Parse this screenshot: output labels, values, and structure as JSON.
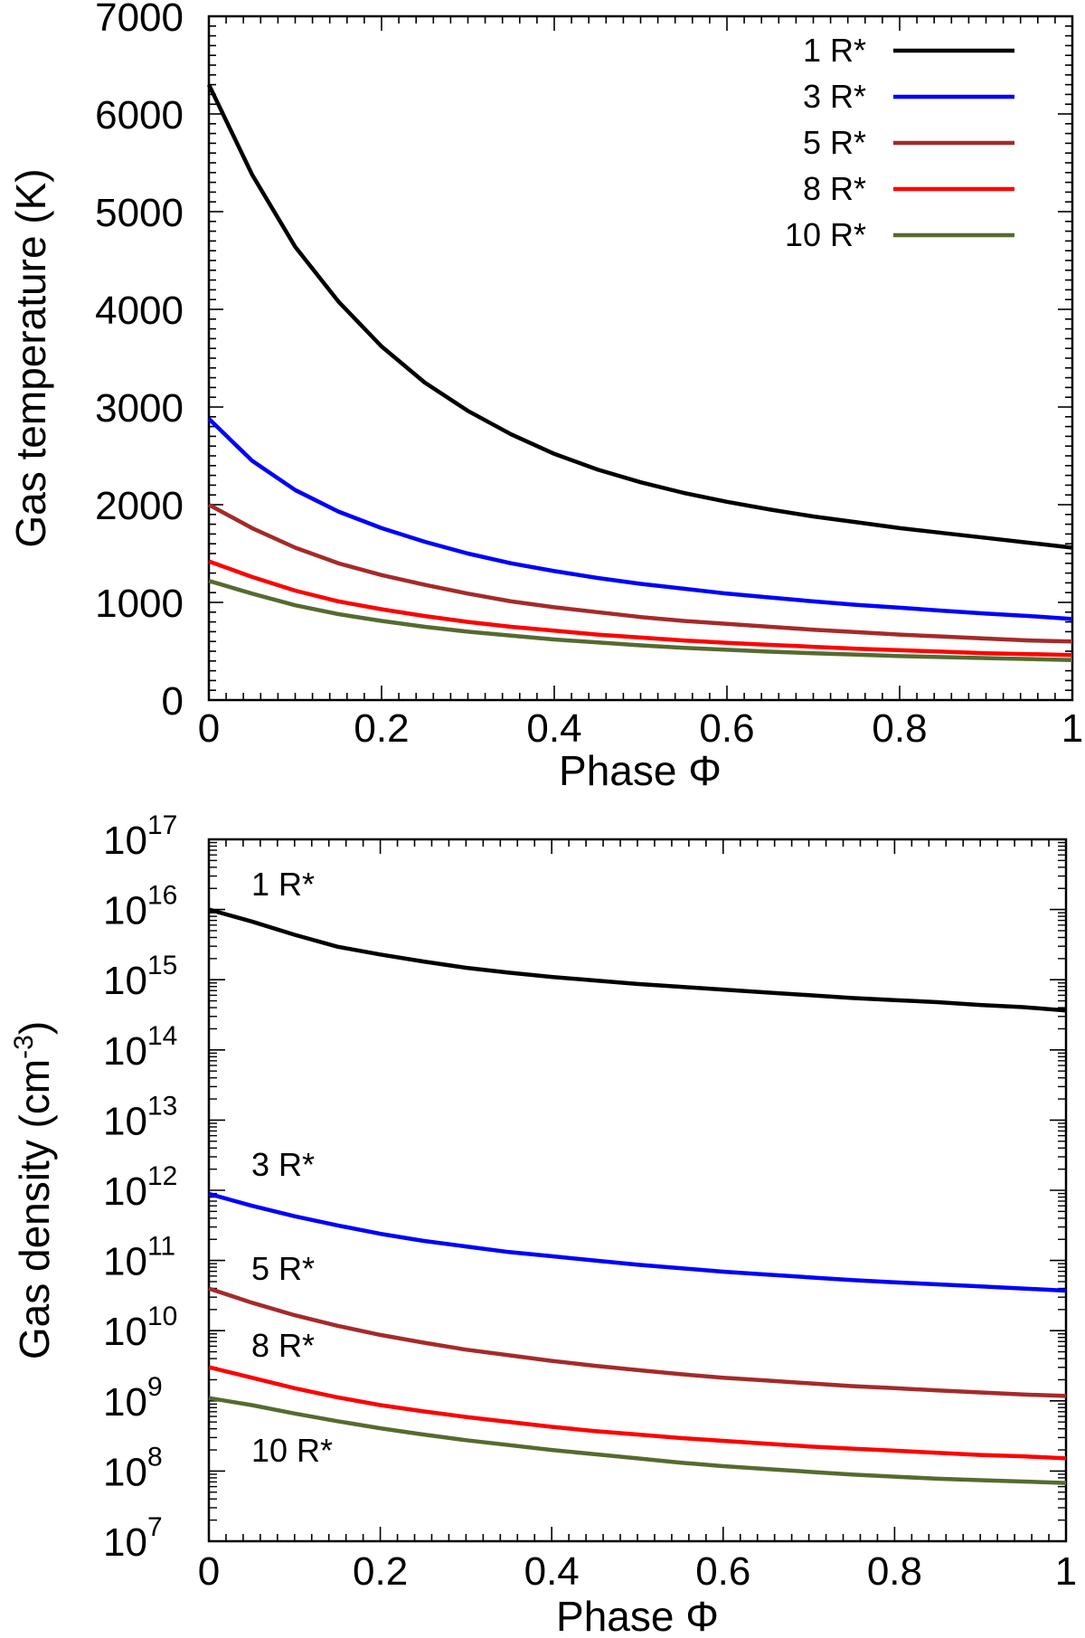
{
  "chart_data": [
    {
      "type": "line",
      "title": "",
      "xlabel": "Phase Φ",
      "ylabel": "Gas temperature (K)",
      "xlim": [
        0,
        1
      ],
      "ylim": [
        0,
        7000
      ],
      "xticks": [
        "0",
        "0.2",
        "0.4",
        "0.6",
        "0.8",
        "1"
      ],
      "yticks": [
        "0",
        "1000",
        "2000",
        "3000",
        "4000",
        "5000",
        "6000",
        "7000"
      ],
      "legend_position": "top-right",
      "x": [
        0,
        0.05,
        0.1,
        0.15,
        0.2,
        0.25,
        0.3,
        0.35,
        0.4,
        0.45,
        0.5,
        0.55,
        0.6,
        0.65,
        0.7,
        0.75,
        0.8,
        0.85,
        0.9,
        0.95,
        1.0
      ],
      "series": [
        {
          "name": "1 R*",
          "color": "#000000",
          "values": [
            6300,
            5380,
            4640,
            4080,
            3620,
            3250,
            2960,
            2720,
            2520,
            2360,
            2230,
            2120,
            2030,
            1950,
            1880,
            1820,
            1760,
            1710,
            1660,
            1610,
            1560
          ]
        },
        {
          "name": "3 R*",
          "color": "#0000ff",
          "values": [
            2880,
            2450,
            2150,
            1930,
            1760,
            1620,
            1500,
            1400,
            1320,
            1250,
            1190,
            1140,
            1090,
            1050,
            1010,
            975,
            945,
            915,
            885,
            860,
            830
          ]
        },
        {
          "name": "5 R*",
          "color": "#a52a2a",
          "values": [
            2000,
            1760,
            1560,
            1400,
            1280,
            1180,
            1090,
            1010,
            950,
            900,
            850,
            810,
            780,
            750,
            720,
            695,
            670,
            650,
            630,
            610,
            600
          ]
        },
        {
          "name": "8 R*",
          "color": "#ff0000",
          "values": [
            1420,
            1260,
            1120,
            1010,
            930,
            860,
            800,
            750,
            710,
            670,
            640,
            610,
            585,
            565,
            545,
            525,
            510,
            495,
            480,
            470,
            460
          ]
        },
        {
          "name": "10 R*",
          "color": "#556b2f",
          "values": [
            1220,
            1090,
            970,
            880,
            810,
            750,
            700,
            660,
            620,
            590,
            560,
            535,
            515,
            495,
            480,
            465,
            450,
            440,
            430,
            420,
            410
          ]
        }
      ]
    },
    {
      "type": "line",
      "title": "",
      "xlabel": "Phase Φ",
      "ylabel": "Gas density (cm",
      "ylabel_sup": "-3",
      "ylabel_end": ")",
      "yscale": "log",
      "xlim": [
        0,
        1
      ],
      "ylim_exponents": [
        7,
        17
      ],
      "xticks": [
        "0",
        "0.2",
        "0.4",
        "0.6",
        "0.8",
        "1"
      ],
      "ytick_base": "10",
      "ytick_exponents": [
        "7",
        "8",
        "9",
        "10",
        "11",
        "12",
        "13",
        "14",
        "15",
        "16",
        "17"
      ],
      "legend_position": "inline-left",
      "x": [
        0,
        0.05,
        0.1,
        0.15,
        0.2,
        0.25,
        0.3,
        0.35,
        0.4,
        0.45,
        0.5,
        0.55,
        0.6,
        0.65,
        0.7,
        0.75,
        0.8,
        0.85,
        0.9,
        0.95,
        1.0
      ],
      "log10_values_note": "values are log10 of density",
      "series": [
        {
          "name": "1 R*",
          "color": "#000000",
          "values": [
            16.0,
            15.83,
            15.64,
            15.47,
            15.36,
            15.26,
            15.17,
            15.1,
            15.04,
            14.99,
            14.94,
            14.9,
            14.86,
            14.82,
            14.78,
            14.74,
            14.71,
            14.68,
            14.64,
            14.61,
            14.56
          ]
        },
        {
          "name": "3 R*",
          "color": "#0000ff",
          "values": [
            11.95,
            11.78,
            11.63,
            11.5,
            11.38,
            11.28,
            11.2,
            11.12,
            11.06,
            11.0,
            10.94,
            10.89,
            10.84,
            10.8,
            10.76,
            10.72,
            10.69,
            10.66,
            10.63,
            10.6,
            10.57
          ]
        },
        {
          "name": "5 R*",
          "color": "#a52a2a",
          "values": [
            10.6,
            10.4,
            10.22,
            10.07,
            9.94,
            9.83,
            9.73,
            9.65,
            9.57,
            9.5,
            9.44,
            9.38,
            9.33,
            9.29,
            9.25,
            9.21,
            9.18,
            9.15,
            9.12,
            9.09,
            9.07
          ]
        },
        {
          "name": "8 R*",
          "color": "#ff0000",
          "values": [
            9.48,
            9.33,
            9.18,
            9.05,
            8.94,
            8.85,
            8.77,
            8.7,
            8.63,
            8.57,
            8.52,
            8.47,
            8.43,
            8.39,
            8.35,
            8.32,
            8.29,
            8.26,
            8.23,
            8.21,
            8.18
          ]
        },
        {
          "name": "10 R*",
          "color": "#556b2f",
          "values": [
            9.04,
            8.94,
            8.82,
            8.71,
            8.61,
            8.52,
            8.44,
            8.37,
            8.3,
            8.24,
            8.18,
            8.12,
            8.07,
            8.03,
            7.99,
            7.95,
            7.92,
            7.89,
            7.87,
            7.85,
            7.83
          ]
        }
      ]
    }
  ]
}
